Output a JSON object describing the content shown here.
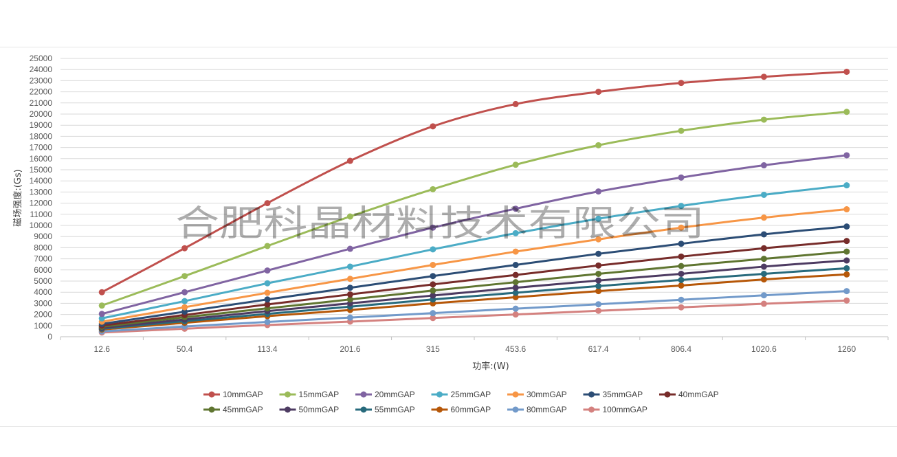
{
  "watermark": "合肥科晶材料技术有限公司",
  "chart_data": {
    "type": "line",
    "title": "",
    "xlabel": "功率:(W)",
    "ylabel": "磁场强度:(Gs)",
    "categories": [
      "12.6",
      "50.4",
      "113.4",
      "201.6",
      "315",
      "453.6",
      "617.4",
      "806.4",
      "1020.6",
      "1260"
    ],
    "ylim": [
      0,
      25000
    ],
    "yticks": [
      0,
      1000,
      2000,
      3000,
      4000,
      5000,
      6000,
      7000,
      8000,
      9000,
      10000,
      11000,
      12000,
      13000,
      14000,
      15000,
      16000,
      17000,
      18000,
      19000,
      20000,
      21000,
      22000,
      23000,
      24000,
      25000
    ],
    "grid": true,
    "legend_position": "bottom",
    "series": [
      {
        "name": "10mmGAP",
        "color": "#C0504D",
        "values": [
          4000,
          7950,
          12000,
          15800,
          18900,
          20900,
          22000,
          22800,
          23350,
          23800
        ]
      },
      {
        "name": "15mmGAP",
        "color": "#9BBB59",
        "values": [
          2800,
          5450,
          8150,
          10800,
          13250,
          15450,
          17200,
          18500,
          19500,
          20200
        ]
      },
      {
        "name": "20mmGAP",
        "color": "#8064A2",
        "values": [
          2050,
          4000,
          5950,
          7900,
          9800,
          11500,
          13050,
          14300,
          15400,
          16300
        ]
      },
      {
        "name": "25mmGAP",
        "color": "#4BACC6",
        "values": [
          1650,
          3200,
          4800,
          6300,
          7850,
          9300,
          10600,
          11750,
          12750,
          13600
        ]
      },
      {
        "name": "30mmGAP",
        "color": "#F79646",
        "values": [
          1350,
          2650,
          3950,
          5200,
          6450,
          7650,
          8750,
          9800,
          10700,
          11450
        ]
      },
      {
        "name": "35mmGAP",
        "color": "#2C4D75",
        "values": [
          1150,
          2250,
          3350,
          4400,
          5450,
          6450,
          7450,
          8350,
          9200,
          9900
        ]
      },
      {
        "name": "40mmGAP",
        "color": "#772C2A",
        "values": [
          1000,
          1950,
          2900,
          3800,
          4700,
          5550,
          6400,
          7200,
          7950,
          8600
        ]
      },
      {
        "name": "45mmGAP",
        "color": "#5F7530",
        "values": [
          900,
          1750,
          2550,
          3350,
          4150,
          4900,
          5650,
          6350,
          7000,
          7650
        ]
      },
      {
        "name": "50mmGAP",
        "color": "#4D3B62",
        "values": [
          800,
          1550,
          2300,
          3000,
          3700,
          4400,
          5050,
          5650,
          6300,
          6850
        ]
      },
      {
        "name": "55mmGAP",
        "color": "#276A7C",
        "values": [
          720,
          1400,
          2050,
          2700,
          3350,
          3950,
          4550,
          5100,
          5650,
          6150
        ]
      },
      {
        "name": "60mmGAP",
        "color": "#B65708",
        "values": [
          650,
          1250,
          1850,
          2400,
          3000,
          3550,
          4100,
          4600,
          5150,
          5600
        ]
      },
      {
        "name": "80mmGAP",
        "color": "#729ACA",
        "values": [
          480,
          920,
          1330,
          1720,
          2120,
          2520,
          2920,
          3320,
          3720,
          4100
        ]
      },
      {
        "name": "100mmGAP",
        "color": "#D4817F",
        "values": [
          380,
          720,
          1050,
          1360,
          1680,
          2000,
          2330,
          2640,
          2960,
          3250
        ]
      }
    ]
  }
}
